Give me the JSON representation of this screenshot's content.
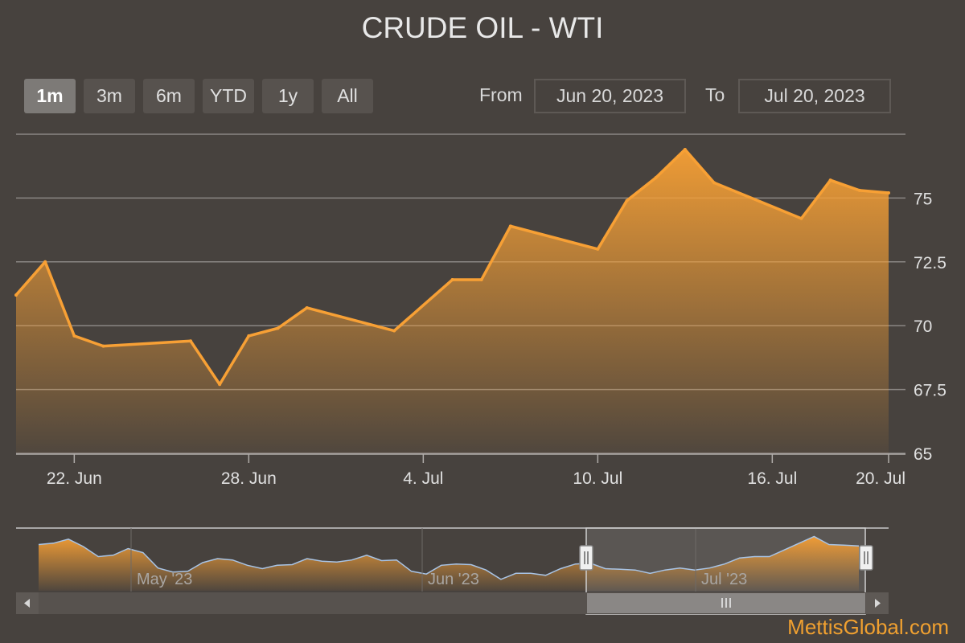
{
  "title": "CRUDE OIL - WTI",
  "range_selector": {
    "buttons": [
      {
        "label": "1m",
        "active": true
      },
      {
        "label": "3m",
        "active": false
      },
      {
        "label": "6m",
        "active": false
      },
      {
        "label": "YTD",
        "active": false
      },
      {
        "label": "1y",
        "active": false
      },
      {
        "label": "All",
        "active": false
      }
    ],
    "from_label": "From",
    "from_value": "Jun 20, 2023",
    "to_label": "To",
    "to_value": "Jul 20, 2023"
  },
  "watermark": "MettisGlobal.com",
  "colors": {
    "line": "#f7a035",
    "background": "#47423e",
    "grid": "#8a8683"
  },
  "chart_data": {
    "type": "area",
    "title": "CRUDE OIL - WTI",
    "x_tick_labels": [
      "22. Jun",
      "28. Jun",
      "4. Jul",
      "10. Jul",
      "16. Jul",
      "20. Jul"
    ],
    "y_tick_labels": [
      "65",
      "67.5",
      "70",
      "72.5",
      "75"
    ],
    "ylim": [
      65,
      77.5
    ],
    "grid": true,
    "series": [
      {
        "x": [
          "2023-06-20",
          "2023-06-21",
          "2023-06-22",
          "2023-06-23",
          "2023-06-26",
          "2023-06-27",
          "2023-06-28",
          "2023-06-29",
          "2023-06-30",
          "2023-07-03",
          "2023-07-05",
          "2023-07-06",
          "2023-07-07",
          "2023-07-10",
          "2023-07-11",
          "2023-07-12",
          "2023-07-13",
          "2023-07-14",
          "2023-07-17",
          "2023-07-18",
          "2023-07-19",
          "2023-07-20"
        ],
        "values": [
          71.2,
          72.5,
          69.6,
          69.2,
          69.4,
          67.7,
          69.6,
          69.9,
          70.7,
          69.8,
          71.8,
          71.8,
          73.9,
          73.0,
          74.9,
          75.8,
          76.9,
          75.6,
          74.2,
          75.7,
          75.3,
          75.2
        ]
      }
    ],
    "navigator": {
      "x_tick_labels": [
        "May '23",
        "Jun '23",
        "Jul '23"
      ],
      "selected_range": [
        "Jun 20, 2023",
        "Jul 20, 2023"
      ]
    }
  }
}
